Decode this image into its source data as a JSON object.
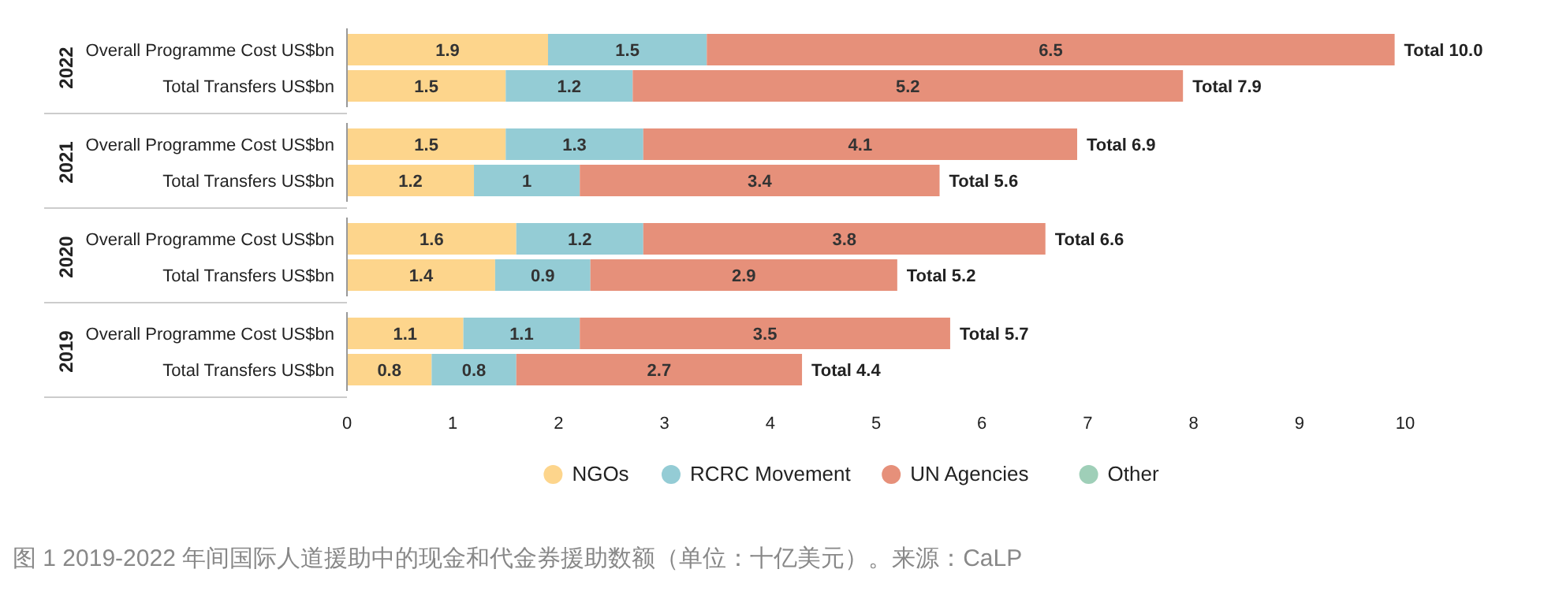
{
  "chart_data": [
    {
      "type": "bar",
      "orientation": "horizontal",
      "stacked": true,
      "title": "2022",
      "categories": [
        "Overall Programme Cost US$bn",
        "Total Transfers US$bn"
      ],
      "series": [
        {
          "color": "#fdd58c",
          "values": [
            1.9,
            1.5
          ]
        },
        {
          "color": "#94ccd5",
          "values": [
            1.5,
            1.2
          ]
        },
        {
          "color": "#e6907a",
          "values": [
            6.5,
            5.2
          ]
        }
      ],
      "totals": [
        "Total 10.0",
        "Total 7.9"
      ],
      "data_labels": true,
      "xlim": [
        0,
        10
      ],
      "tick_labels": "y"
    },
    {
      "type": "bar",
      "orientation": "horizontal",
      "stacked": true,
      "title": "2021",
      "categories": [
        "Overall Programme Cost US$bn",
        "Total Transfers US$bn"
      ],
      "series": [
        {
          "color": "#fdd58c",
          "values": [
            1.5,
            1.2
          ]
        },
        {
          "color": "#94ccd5",
          "values": [
            1.3,
            1
          ]
        },
        {
          "color": "#e6907a",
          "values": [
            4.1,
            3.4
          ]
        }
      ],
      "totals": [
        "Total 6.9",
        "Total 5.6"
      ],
      "data_labels": true,
      "xlim": [
        0,
        10
      ],
      "tick_labels": "y"
    },
    {
      "type": "bar",
      "orientation": "horizontal",
      "stacked": true,
      "title": "2020",
      "categories": [
        "Overall Programme Cost US$bn",
        "Total Transfers US$bn"
      ],
      "series": [
        {
          "color": "#fdd58c",
          "values": [
            1.6,
            1.4
          ]
        },
        {
          "color": "#94ccd5",
          "values": [
            1.2,
            0.9
          ]
        },
        {
          "color": "#e6907a",
          "values": [
            3.8,
            2.9
          ]
        }
      ],
      "totals": [
        "Total 6.6",
        "Total 5.2"
      ],
      "data_labels": true,
      "xlim": [
        0,
        10
      ],
      "tick_labels": "y"
    },
    {
      "type": "bar",
      "orientation": "horizontal",
      "stacked": true,
      "title": "2019",
      "categories": [
        "Overall Programme Cost US$bn",
        "Total Transfers US$bn"
      ],
      "series": [
        {
          "name": "NGOs",
          "color": "#fdd58c",
          "values": [
            1.1,
            0.8
          ]
        },
        {
          "name": "RCRC Movement",
          "color": "#94ccd5",
          "values": [
            1.1,
            0.8
          ]
        },
        {
          "name": "UN Agencies",
          "color": "#e6907a",
          "values": [
            3.5,
            2.7
          ]
        },
        {
          "name": "Other",
          "color": "#9fcfb8",
          "values": [
            null,
            null
          ]
        }
      ],
      "totals": [
        "Total 5.7",
        "Total 4.4"
      ],
      "data_labels": true,
      "xlim": [
        0,
        10
      ],
      "xticks": [
        0,
        1,
        2,
        3,
        4,
        5,
        6,
        7,
        8,
        9,
        10
      ],
      "legend": "bottom",
      "annotations": [
        "图 1  2019-2022 年间国际人道援助中的现金和代金券援助数额（单位：十亿美元）。来源：CaLP"
      ]
    }
  ]
}
